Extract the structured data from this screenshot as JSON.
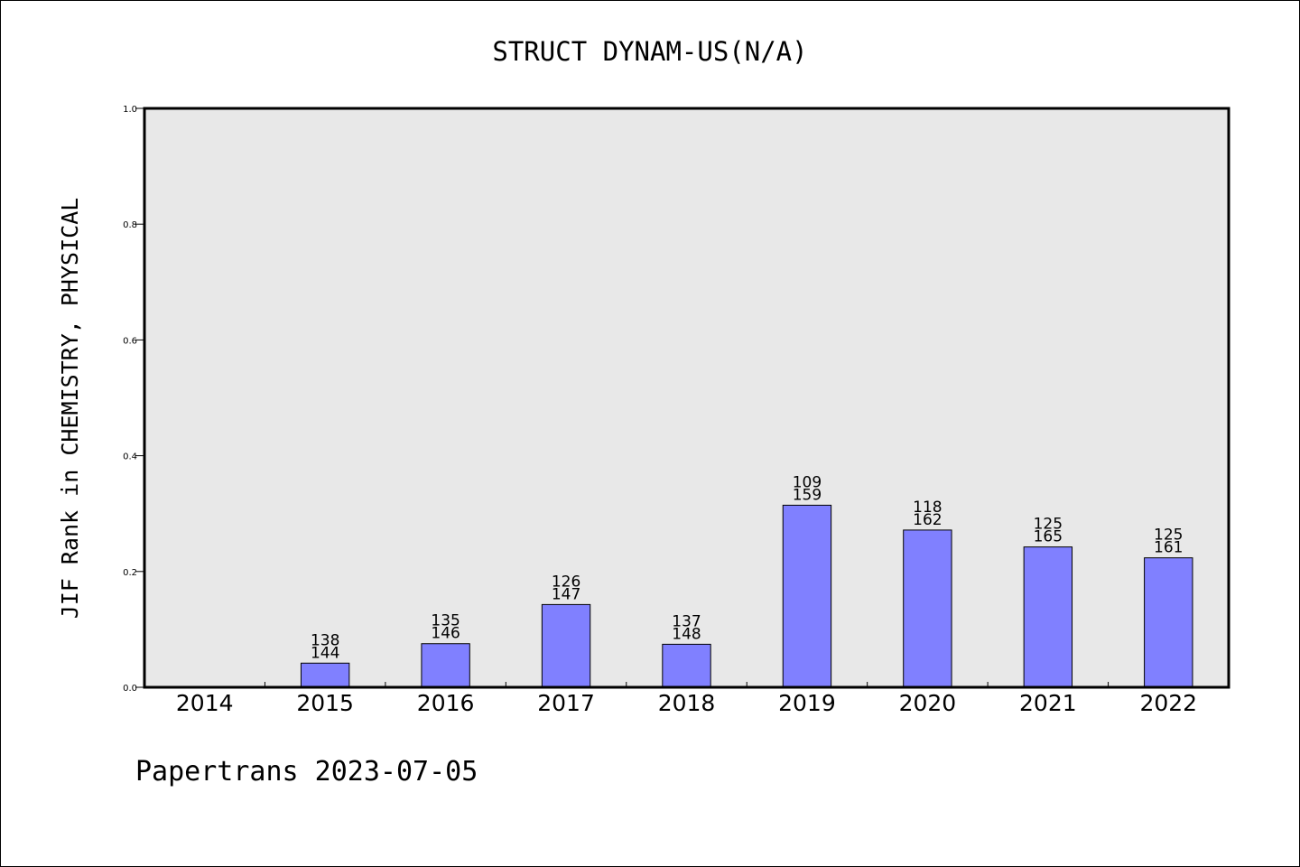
{
  "chart_data": {
    "type": "bar",
    "title": "STRUCT DYNAM-US(N/A)",
    "xlabel": "",
    "ylabel": "JIF Rank in CHEMISTRY, PHYSICAL",
    "ylim": [
      0,
      1.0
    ],
    "yticks": [
      "0.0",
      "0.2",
      "0.4",
      "0.6",
      "0.8",
      "1.0"
    ],
    "grid": false,
    "categories": [
      "2014",
      "2015",
      "2016",
      "2017",
      "2018",
      "2019",
      "2020",
      "2021",
      "2022"
    ],
    "values": [
      null,
      0.0417,
      0.0753,
      0.1429,
      0.0743,
      0.3145,
      0.2716,
      0.2424,
      0.2236
    ],
    "labels": [
      [
        "",
        ""
      ],
      [
        "138",
        "144"
      ],
      [
        "135",
        "146"
      ],
      [
        "126",
        "147"
      ],
      [
        "137",
        "148"
      ],
      [
        "109",
        "159"
      ],
      [
        "118",
        "162"
      ],
      [
        "125",
        "165"
      ],
      [
        "125",
        "161"
      ]
    ],
    "colors": {
      "bar_fill": "#8080ff",
      "plot_background": "#e8e8e8",
      "axis": "#000000"
    },
    "footer": "Papertrans 2023-07-05"
  }
}
